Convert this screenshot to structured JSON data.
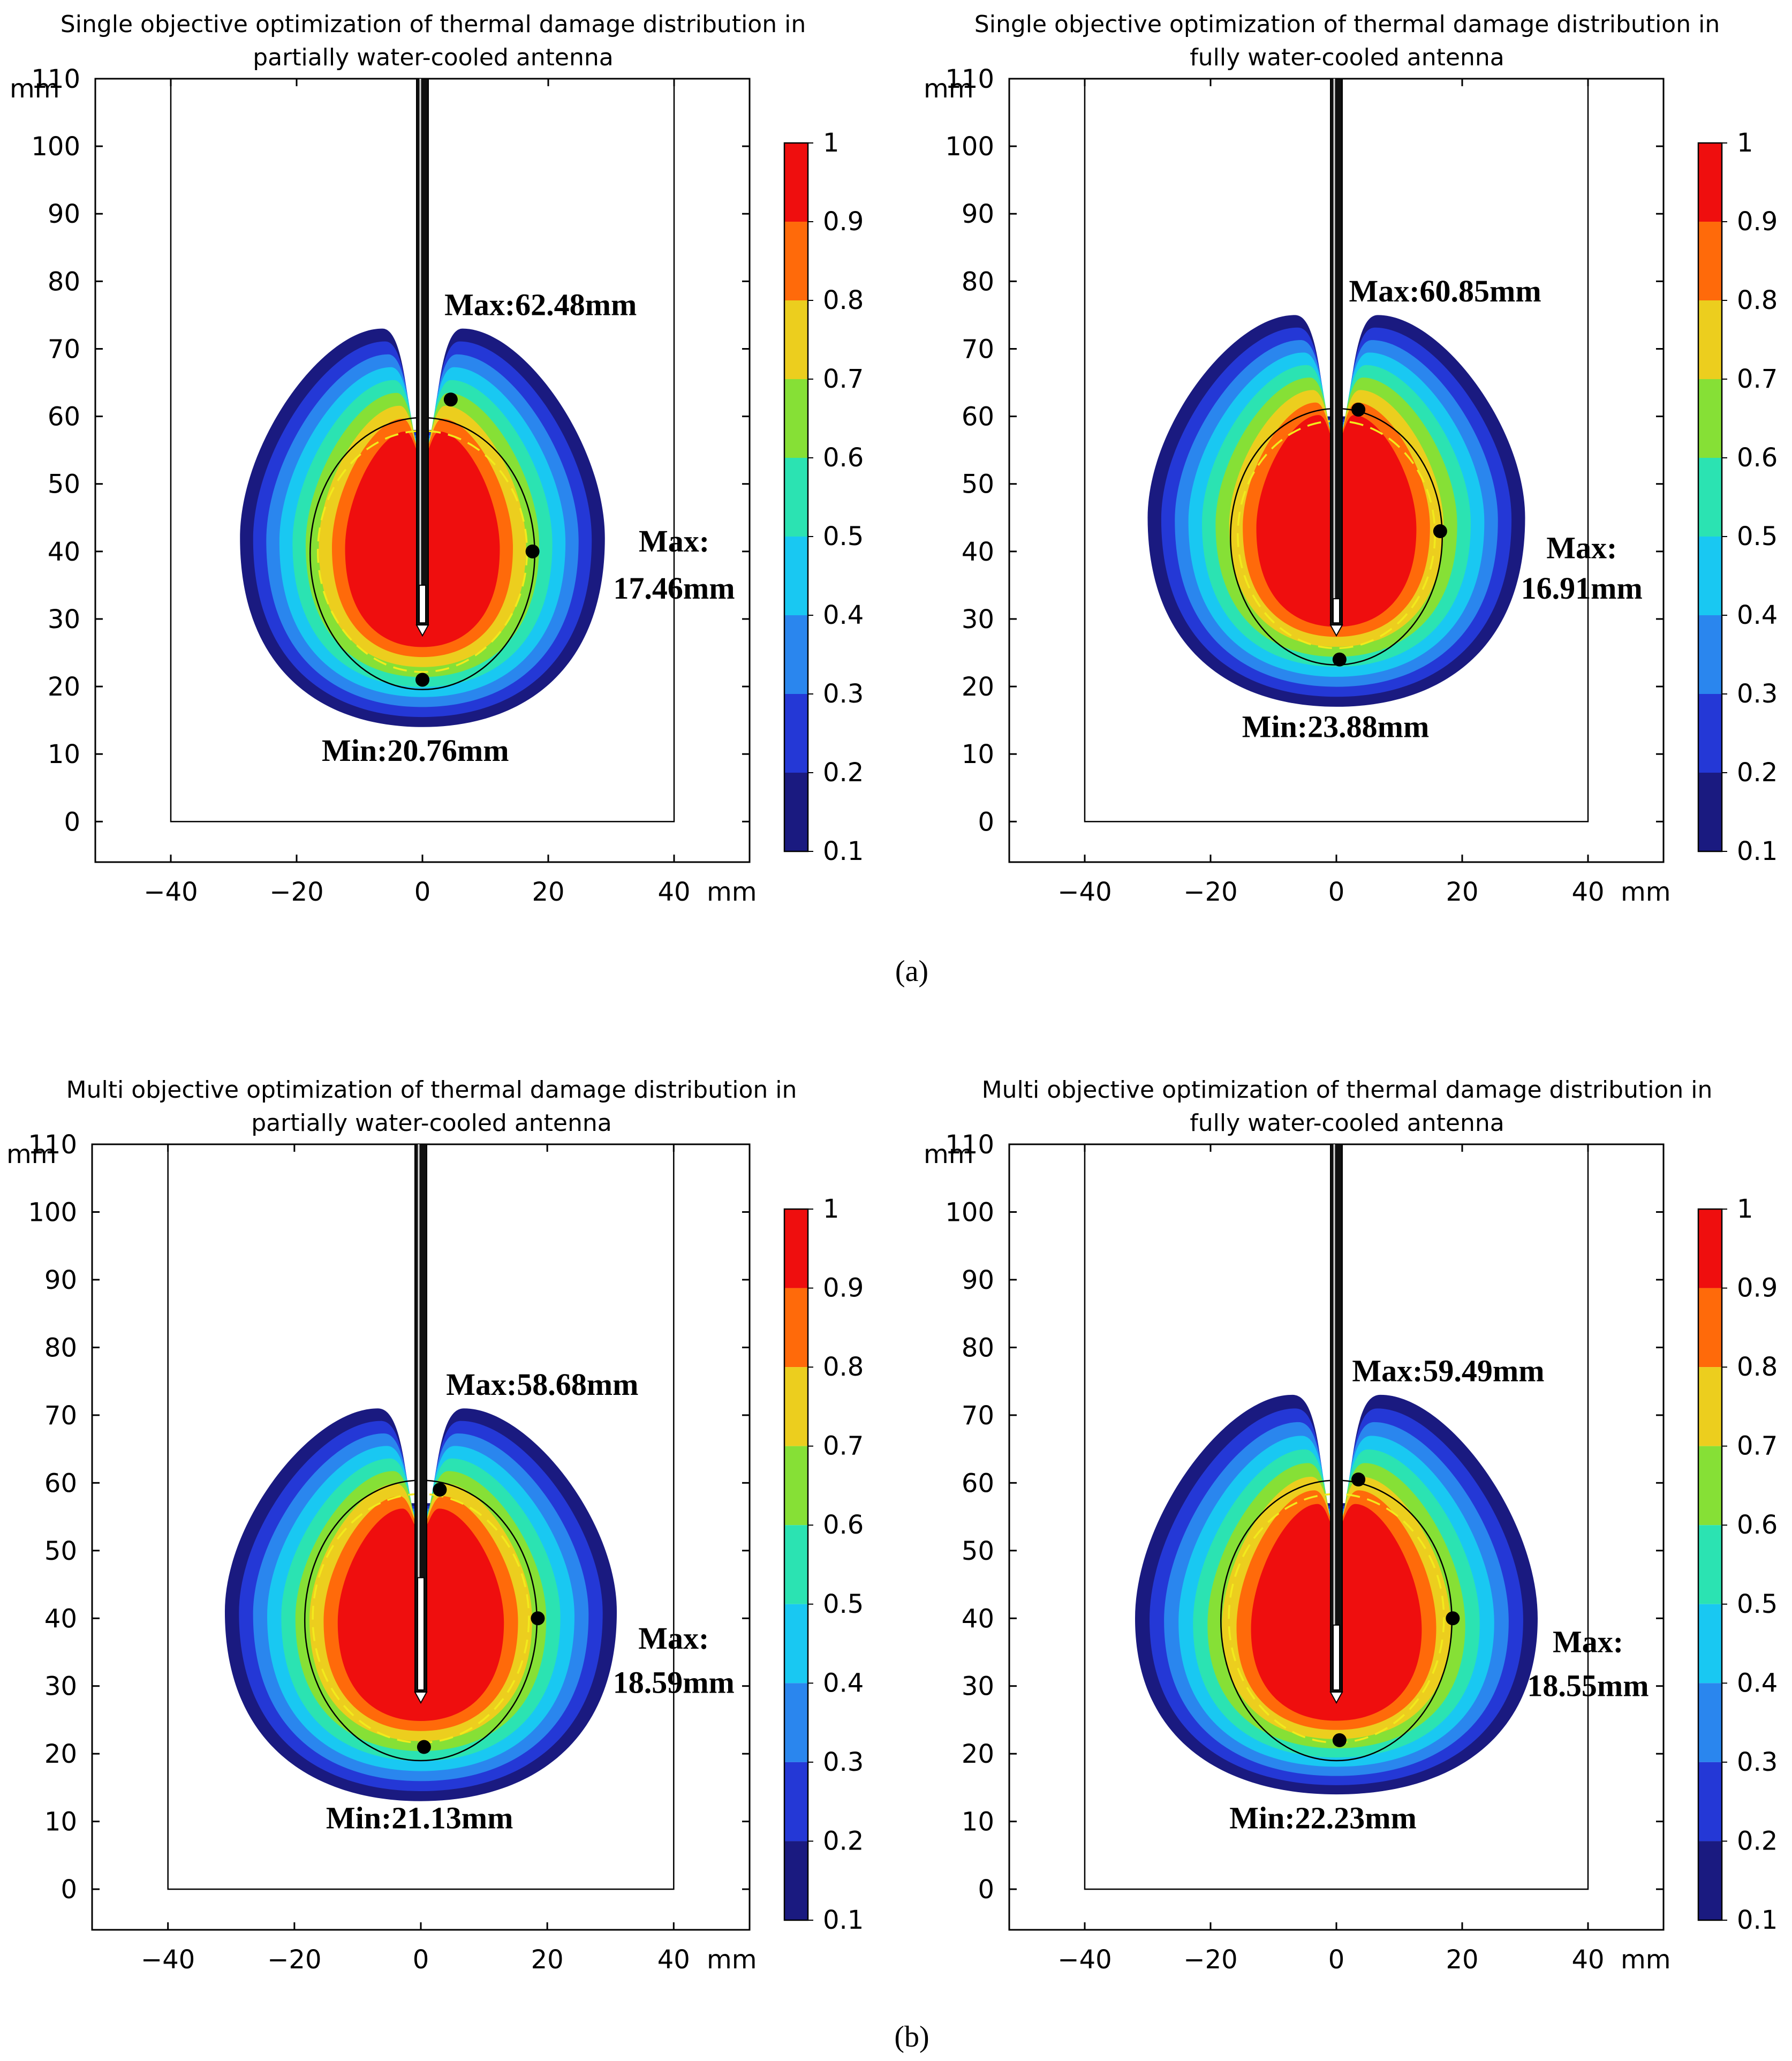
{
  "colormap": [
    "#1a1a80",
    "#2438d6",
    "#2a86ee",
    "#19c8f2",
    "#2be3b2",
    "#86e036",
    "#ecce1e",
    "#ff6a0a",
    "#ef0e0e"
  ],
  "colorbar": {
    "ticks": [
      "1",
      "0.9",
      "0.8",
      "0.7",
      "0.6",
      "0.5",
      "0.4",
      "0.3",
      "0.2",
      "0.1"
    ]
  },
  "labels": {
    "a": "(a)",
    "b": "(b)"
  },
  "chart_data": [
    {
      "type": "contour",
      "title": [
        "Single objective optimization of thermal damage distribution in",
        "partially water-cooled antenna"
      ],
      "xlabel": "mm",
      "ylabel": "mm",
      "xlim": [
        -52,
        52
      ],
      "ylim": [
        -6,
        110
      ],
      "xticks": [
        "−40",
        "−20",
        "0",
        "20",
        "40"
      ],
      "xtick_values": [
        -40,
        -20,
        0,
        20,
        40
      ],
      "yticks": [
        "0",
        "10",
        "20",
        "30",
        "40",
        "50",
        "60",
        "70",
        "80",
        "90",
        "100",
        "110"
      ],
      "domain": {
        "x": [
          -40,
          40
        ],
        "y": [
          0,
          110
        ]
      },
      "antenna": {
        "tip_y": 28,
        "slot_top": 35
      },
      "region": {
        "center": [
          0,
          42
        ],
        "rx": 29,
        "top_y": 73,
        "bottom_y": 14,
        "notch_y": 58
      },
      "points": [
        [
          4.5,
          62.5
        ],
        [
          17.5,
          40
        ],
        [
          0,
          21
        ]
      ],
      "dashed_circle": {
        "center": [
          0,
          40
        ],
        "r": 17.5
      },
      "annotations": [
        {
          "text": "Max:62.48mm",
          "x": 3.5,
          "y": 75,
          "anchor": "start"
        },
        {
          "text": "Max:",
          "x": 40,
          "y": 40,
          "anchor": "middle"
        },
        {
          "text": "17.46mm",
          "x": 40,
          "y": 33,
          "anchor": "middle"
        },
        {
          "text": "Min:20.76mm",
          "x": -16,
          "y": 9,
          "anchor": "start"
        }
      ]
    },
    {
      "type": "contour",
      "title": [
        "Single objective optimization of thermal damage distribution in",
        "fully water-cooled antenna"
      ],
      "xlabel": "mm",
      "ylabel": "mm",
      "xlim": [
        -52,
        52
      ],
      "ylim": [
        -6,
        110
      ],
      "xticks": [
        "−40",
        "−20",
        "0",
        "20",
        "40"
      ],
      "xtick_values": [
        -40,
        -20,
        0,
        20,
        40
      ],
      "yticks": [
        "0",
        "10",
        "20",
        "30",
        "40",
        "50",
        "60",
        "70",
        "80",
        "90",
        "100",
        "110"
      ],
      "domain": {
        "x": [
          -40,
          40
        ],
        "y": [
          0,
          110
        ]
      },
      "antenna": {
        "tip_y": 28,
        "slot_top": 33
      },
      "region": {
        "center": [
          0,
          45
        ],
        "rx": 30,
        "top_y": 75,
        "bottom_y": 17,
        "notch_y": 60
      },
      "points": [
        [
          3.5,
          61
        ],
        [
          16.5,
          43
        ],
        [
          0.5,
          24
        ]
      ],
      "dashed_circle": {
        "center": [
          0,
          42.5
        ],
        "r": 16.5
      },
      "annotations": [
        {
          "text": "Max:60.85mm",
          "x": 2,
          "y": 77,
          "anchor": "start"
        },
        {
          "text": "Max:",
          "x": 39,
          "y": 39,
          "anchor": "middle"
        },
        {
          "text": "16.91mm",
          "x": 39,
          "y": 33,
          "anchor": "middle"
        },
        {
          "text": "Min:23.88mm",
          "x": -15,
          "y": 12.5,
          "anchor": "start"
        }
      ]
    },
    {
      "type": "contour",
      "title": [
        "Multi objective optimization of thermal damage distribution in",
        "partially water-cooled antenna"
      ],
      "xlabel": "mm",
      "ylabel": "mm",
      "xlim": [
        -52,
        52
      ],
      "ylim": [
        -6,
        110
      ],
      "xticks": [
        "−40",
        "−20",
        "0",
        "20",
        "40"
      ],
      "xtick_values": [
        -40,
        -20,
        0,
        20,
        40
      ],
      "yticks": [
        "0",
        "10",
        "20",
        "30",
        "40",
        "50",
        "60",
        "70",
        "80",
        "90",
        "100",
        "110"
      ],
      "domain": {
        "x": [
          -40,
          40
        ],
        "y": [
          0,
          110
        ]
      },
      "antenna": {
        "tip_y": 28,
        "slot_top": 46
      },
      "region": {
        "center": [
          0,
          41
        ],
        "rx": 31,
        "top_y": 71,
        "bottom_y": 13,
        "notch_y": 57
      },
      "points": [
        [
          3,
          59
        ],
        [
          18.5,
          40
        ],
        [
          0.5,
          21
        ]
      ],
      "dashed_circle": {
        "center": [
          0,
          40
        ],
        "r": 18
      },
      "annotations": [
        {
          "text": "Max:58.68mm",
          "x": 4,
          "y": 73,
          "anchor": "start"
        },
        {
          "text": "Max:",
          "x": 40,
          "y": 35.5,
          "anchor": "middle"
        },
        {
          "text": "18.59mm",
          "x": 40,
          "y": 29,
          "anchor": "middle"
        },
        {
          "text": "Min:21.13mm",
          "x": -15,
          "y": 9,
          "anchor": "start"
        }
      ]
    },
    {
      "type": "contour",
      "title": [
        "Multi objective optimization of thermal damage distribution in",
        "fully water-cooled antenna"
      ],
      "xlabel": "mm",
      "ylabel": "mm",
      "xlim": [
        -52,
        52
      ],
      "ylim": [
        -6,
        110
      ],
      "xticks": [
        "−40",
        "−20",
        "0",
        "20",
        "40"
      ],
      "xtick_values": [
        -40,
        -20,
        0,
        20,
        40
      ],
      "yticks": [
        "0",
        "10",
        "20",
        "30",
        "40",
        "50",
        "60",
        "70",
        "80",
        "90",
        "100",
        "110"
      ],
      "domain": {
        "x": [
          -40,
          40
        ],
        "y": [
          0,
          110
        ]
      },
      "antenna": {
        "tip_y": 28,
        "slot_top": 39
      },
      "region": {
        "center": [
          0,
          40
        ],
        "rx": 32,
        "top_y": 73,
        "bottom_y": 14,
        "notch_y": 57
      },
      "points": [
        [
          3.5,
          60.5
        ],
        [
          18.5,
          40
        ],
        [
          0.5,
          22
        ]
      ],
      "dashed_circle": {
        "center": [
          0,
          40
        ],
        "r": 18
      },
      "annotations": [
        {
          "text": "Max:59.49mm",
          "x": 2.5,
          "y": 75,
          "anchor": "start"
        },
        {
          "text": "Max:",
          "x": 40,
          "y": 35,
          "anchor": "middle"
        },
        {
          "text": "18.55mm",
          "x": 40,
          "y": 28.5,
          "anchor": "middle"
        },
        {
          "text": "Min:22.23mm",
          "x": -17,
          "y": 9,
          "anchor": "start"
        }
      ]
    }
  ]
}
